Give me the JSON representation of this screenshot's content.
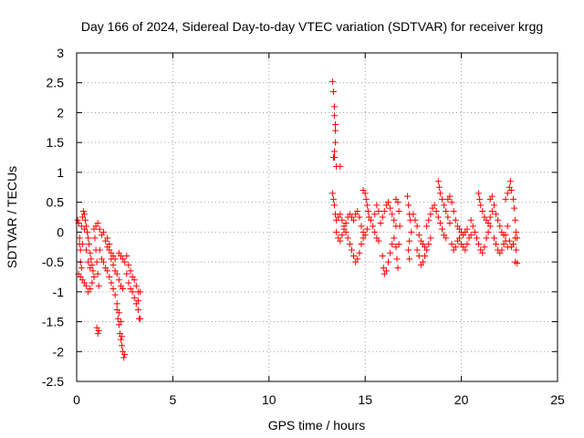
{
  "chart_data": {
    "type": "scatter",
    "title": "Day 166 of 2024, Sidereal Day-to-day VTEC variation (SDTVAR) for receiver krgg",
    "xlabel": "GPS time / hours",
    "ylabel": "SDTVAR / TECUs",
    "xlim": [
      0,
      25
    ],
    "ylim": [
      -2.5,
      3
    ],
    "xticks": [
      0,
      5,
      10,
      15,
      20,
      25
    ],
    "xtick_labels": [
      "0",
      "5",
      "10",
      "15",
      "20",
      "25"
    ],
    "yticks": [
      -2.5,
      -2,
      -1.5,
      -1,
      -0.5,
      0,
      0.5,
      1,
      1.5,
      2,
      2.5,
      3
    ],
    "ytick_labels": [
      "-2.5",
      "-2",
      "-1.5",
      "-1",
      "-0.5",
      "0",
      "0.5",
      "1",
      "1.5",
      "2",
      "2.5",
      "3"
    ],
    "grid": true,
    "marker": "+",
    "marker_color": "#ff0000",
    "series": [
      {
        "name": "SDTVAR",
        "points": [
          [
            0.05,
            0.2
          ],
          [
            0.1,
            0.15
          ],
          [
            0.15,
            -0.1
          ],
          [
            0.2,
            -0.3
          ],
          [
            0.25,
            0.1
          ],
          [
            0.3,
            0.25
          ],
          [
            0.35,
            0.35
          ],
          [
            0.4,
            0.3
          ],
          [
            0.45,
            0.2
          ],
          [
            0.5,
            0.1
          ],
          [
            0.55,
            0.0
          ],
          [
            0.6,
            -0.1
          ],
          [
            0.65,
            -0.2
          ],
          [
            0.7,
            -0.35
          ],
          [
            0.75,
            -0.45
          ],
          [
            0.8,
            -0.55
          ],
          [
            0.85,
            -0.65
          ],
          [
            0.1,
            -0.7
          ],
          [
            0.2,
            -0.75
          ],
          [
            0.3,
            -0.8
          ],
          [
            0.4,
            -0.85
          ],
          [
            0.5,
            -0.9
          ],
          [
            0.6,
            -1.0
          ],
          [
            0.7,
            -0.95
          ],
          [
            0.8,
            -0.85
          ],
          [
            0.9,
            -0.75
          ],
          [
            0.15,
            -0.2
          ],
          [
            0.2,
            -0.5
          ],
          [
            0.25,
            -0.6
          ],
          [
            0.3,
            -0.2
          ],
          [
            0.4,
            0.05
          ],
          [
            0.5,
            -0.3
          ],
          [
            0.6,
            -0.5
          ],
          [
            0.7,
            -0.6
          ],
          [
            0.9,
            0.05
          ],
          [
            0.95,
            -0.1
          ],
          [
            1.0,
            -0.3
          ],
          [
            1.05,
            -0.5
          ],
          [
            1.1,
            -0.7
          ],
          [
            1.15,
            -0.9
          ],
          [
            1.05,
            -1.6
          ],
          [
            1.1,
            -1.7
          ],
          [
            1.15,
            -1.65
          ],
          [
            1.0,
            0.1
          ],
          [
            1.1,
            0.15
          ],
          [
            1.2,
            0.05
          ],
          [
            1.3,
            -0.05
          ],
          [
            1.4,
            0.0
          ],
          [
            1.5,
            -0.15
          ],
          [
            1.6,
            -0.25
          ],
          [
            1.7,
            -0.3
          ],
          [
            1.8,
            -0.35
          ],
          [
            1.9,
            -0.4
          ],
          [
            2.0,
            -0.45
          ],
          [
            1.2,
            -0.3
          ],
          [
            1.3,
            -0.45
          ],
          [
            1.4,
            -0.5
          ],
          [
            1.5,
            -0.6
          ],
          [
            1.6,
            -0.65
          ],
          [
            1.7,
            -0.75
          ],
          [
            1.8,
            -0.85
          ],
          [
            1.9,
            -0.95
          ],
          [
            2.0,
            -1.05
          ],
          [
            2.1,
            -1.2
          ],
          [
            2.2,
            -1.35
          ],
          [
            2.3,
            -1.5
          ],
          [
            2.1,
            -1.3
          ],
          [
            2.15,
            -1.45
          ],
          [
            2.2,
            -1.55
          ],
          [
            2.25,
            -1.7
          ],
          [
            2.3,
            -1.8
          ],
          [
            2.35,
            -1.9
          ],
          [
            2.4,
            -2.0
          ],
          [
            2.45,
            -2.1
          ],
          [
            2.5,
            -2.05
          ],
          [
            2.35,
            -1.75
          ],
          [
            2.2,
            -0.35
          ],
          [
            2.3,
            -0.4
          ],
          [
            2.4,
            -0.45
          ],
          [
            2.5,
            -0.5
          ],
          [
            2.6,
            -0.4
          ],
          [
            2.7,
            -0.55
          ],
          [
            2.8,
            -0.65
          ],
          [
            2.9,
            -0.75
          ],
          [
            3.0,
            -0.8
          ],
          [
            3.1,
            -0.9
          ],
          [
            3.2,
            -1.0
          ],
          [
            3.3,
            -1.0
          ],
          [
            2.6,
            -0.7
          ],
          [
            2.7,
            -0.85
          ],
          [
            2.8,
            -0.95
          ],
          [
            2.9,
            -1.0
          ],
          [
            3.0,
            -1.1
          ],
          [
            3.1,
            -1.2
          ],
          [
            3.2,
            -1.3
          ],
          [
            3.25,
            -1.45
          ],
          [
            3.3,
            -1.45
          ],
          [
            3.2,
            -1.15
          ],
          [
            1.6,
            -0.1
          ],
          [
            1.7,
            -0.2
          ],
          [
            1.8,
            -0.45
          ],
          [
            1.9,
            -0.55
          ],
          [
            2.0,
            -0.65
          ],
          [
            2.1,
            -0.7
          ],
          [
            2.2,
            -0.8
          ],
          [
            2.3,
            -0.9
          ],
          [
            2.4,
            -0.95
          ],
          [
            13.3,
            2.52
          ],
          [
            13.35,
            2.35
          ],
          [
            13.4,
            2.1
          ],
          [
            13.4,
            1.95
          ],
          [
            13.45,
            1.8
          ],
          [
            13.45,
            1.7
          ],
          [
            13.45,
            1.5
          ],
          [
            13.4,
            1.35
          ],
          [
            13.35,
            1.25
          ],
          [
            13.4,
            1.25
          ],
          [
            13.5,
            1.1
          ],
          [
            13.7,
            1.1
          ],
          [
            13.3,
            0.65
          ],
          [
            13.35,
            0.55
          ],
          [
            13.4,
            0.45
          ],
          [
            13.45,
            0.3
          ],
          [
            13.5,
            0.2
          ],
          [
            13.6,
            0.25
          ],
          [
            13.7,
            0.3
          ],
          [
            13.8,
            0.2
          ],
          [
            13.9,
            0.1
          ],
          [
            14.0,
            0.0
          ],
          [
            14.1,
            -0.1
          ],
          [
            13.5,
            0.0
          ],
          [
            13.6,
            -0.1
          ],
          [
            13.7,
            -0.15
          ],
          [
            13.8,
            -0.05
          ],
          [
            13.9,
            0.05
          ],
          [
            14.0,
            0.15
          ],
          [
            14.1,
            0.25
          ],
          [
            14.2,
            0.3
          ],
          [
            14.3,
            0.25
          ],
          [
            14.4,
            0.2
          ],
          [
            14.5,
            0.3
          ],
          [
            14.6,
            0.35
          ],
          [
            14.7,
            0.25
          ],
          [
            14.8,
            0.1
          ],
          [
            14.9,
            0.0
          ],
          [
            14.2,
            -0.2
          ],
          [
            14.3,
            -0.3
          ],
          [
            14.4,
            -0.4
          ],
          [
            14.5,
            -0.5
          ],
          [
            14.6,
            -0.45
          ],
          [
            14.7,
            -0.35
          ],
          [
            14.8,
            -0.2
          ],
          [
            14.9,
            -0.1
          ],
          [
            15.0,
            -0.05
          ],
          [
            15.1,
            0.05
          ],
          [
            14.9,
            0.7
          ],
          [
            15.0,
            0.65
          ],
          [
            15.05,
            0.55
          ],
          [
            15.1,
            0.45
          ],
          [
            15.15,
            0.35
          ],
          [
            15.2,
            0.25
          ],
          [
            15.3,
            0.2
          ],
          [
            15.4,
            0.1
          ],
          [
            15.5,
            0.0
          ],
          [
            15.6,
            -0.1
          ],
          [
            15.7,
            -0.15
          ],
          [
            15.5,
            0.3
          ],
          [
            15.6,
            0.45
          ],
          [
            15.7,
            0.35
          ],
          [
            15.8,
            0.15
          ],
          [
            15.9,
            0.25
          ],
          [
            16.0,
            0.35
          ],
          [
            16.1,
            0.45
          ],
          [
            16.2,
            0.5
          ],
          [
            16.3,
            0.4
          ],
          [
            16.4,
            0.3
          ],
          [
            16.5,
            0.2
          ],
          [
            16.6,
            0.1
          ],
          [
            15.9,
            -0.4
          ],
          [
            15.95,
            -0.6
          ],
          [
            16.0,
            -0.7
          ],
          [
            16.1,
            -0.65
          ],
          [
            16.2,
            -0.5
          ],
          [
            16.3,
            -0.35
          ],
          [
            16.4,
            -0.2
          ],
          [
            16.5,
            -0.1
          ],
          [
            16.6,
            -0.25
          ],
          [
            16.65,
            -0.45
          ],
          [
            16.7,
            -0.6
          ],
          [
            16.6,
            0.55
          ],
          [
            16.7,
            0.5
          ],
          [
            16.75,
            0.35
          ],
          [
            16.8,
            0.1
          ],
          [
            16.75,
            -0.2
          ],
          [
            17.2,
            0.6
          ],
          [
            17.25,
            0.45
          ],
          [
            17.3,
            0.3
          ],
          [
            17.35,
            0.2
          ],
          [
            17.4,
            0.0
          ],
          [
            17.3,
            -0.15
          ],
          [
            17.25,
            -0.3
          ],
          [
            17.3,
            -0.45
          ],
          [
            17.5,
            0.3
          ],
          [
            17.6,
            0.2
          ],
          [
            17.7,
            0.1
          ],
          [
            17.8,
            -0.05
          ],
          [
            17.9,
            -0.15
          ],
          [
            18.0,
            -0.2
          ],
          [
            18.1,
            -0.25
          ],
          [
            18.2,
            -0.3
          ],
          [
            18.3,
            -0.2
          ],
          [
            18.4,
            -0.1
          ],
          [
            17.7,
            -0.3
          ],
          [
            17.8,
            -0.4
          ],
          [
            17.9,
            -0.55
          ],
          [
            18.0,
            -0.5
          ],
          [
            18.1,
            -0.4
          ],
          [
            18.2,
            0.1
          ],
          [
            18.3,
            0.2
          ],
          [
            18.4,
            0.3
          ],
          [
            18.5,
            0.4
          ],
          [
            18.6,
            0.45
          ],
          [
            18.7,
            0.35
          ],
          [
            18.8,
            0.25
          ],
          [
            18.9,
            0.15
          ],
          [
            19.0,
            0.05
          ],
          [
            19.1,
            -0.05
          ],
          [
            19.2,
            -0.1
          ],
          [
            18.8,
            0.85
          ],
          [
            18.85,
            0.75
          ],
          [
            18.9,
            0.65
          ],
          [
            19.0,
            0.55
          ],
          [
            19.1,
            0.45
          ],
          [
            19.2,
            0.35
          ],
          [
            19.3,
            0.25
          ],
          [
            19.4,
            0.15
          ],
          [
            19.3,
            0.55
          ],
          [
            19.4,
            0.6
          ],
          [
            19.5,
            0.5
          ],
          [
            19.6,
            0.35
          ],
          [
            19.7,
            0.2
          ],
          [
            19.8,
            0.1
          ],
          [
            19.9,
            0.05
          ],
          [
            20.0,
            0.0
          ],
          [
            20.1,
            -0.05
          ],
          [
            20.2,
            0.0
          ],
          [
            20.3,
            0.05
          ],
          [
            19.5,
            -0.2
          ],
          [
            19.6,
            -0.3
          ],
          [
            19.7,
            -0.25
          ],
          [
            19.8,
            -0.15
          ],
          [
            19.9,
            -0.1
          ],
          [
            20.0,
            -0.2
          ],
          [
            20.1,
            -0.25
          ],
          [
            20.2,
            -0.3
          ],
          [
            20.3,
            -0.2
          ],
          [
            20.4,
            -0.1
          ],
          [
            20.5,
            -0.05
          ],
          [
            20.5,
            0.2
          ],
          [
            20.6,
            0.1
          ],
          [
            20.7,
            0.0
          ],
          [
            20.8,
            -0.1
          ],
          [
            20.9,
            -0.2
          ],
          [
            21.0,
            -0.3
          ],
          [
            21.1,
            -0.35
          ],
          [
            21.2,
            -0.25
          ],
          [
            21.3,
            -0.1
          ],
          [
            21.4,
            0.0
          ],
          [
            21.5,
            0.1
          ],
          [
            20.9,
            0.65
          ],
          [
            20.95,
            0.55
          ],
          [
            21.0,
            0.45
          ],
          [
            21.1,
            0.35
          ],
          [
            21.2,
            0.25
          ],
          [
            21.3,
            0.2
          ],
          [
            21.4,
            0.15
          ],
          [
            21.5,
            0.25
          ],
          [
            21.6,
            0.35
          ],
          [
            21.5,
            0.55
          ],
          [
            21.6,
            0.6
          ],
          [
            21.7,
            0.45
          ],
          [
            21.8,
            0.3
          ],
          [
            21.9,
            0.2
          ],
          [
            22.0,
            0.1
          ],
          [
            22.1,
            0.0
          ],
          [
            22.2,
            -0.05
          ],
          [
            22.3,
            -0.15
          ],
          [
            22.4,
            -0.25
          ],
          [
            21.7,
            -0.1
          ],
          [
            21.8,
            -0.2
          ],
          [
            21.9,
            -0.3
          ],
          [
            22.0,
            -0.35
          ],
          [
            22.1,
            -0.3
          ],
          [
            22.2,
            -0.2
          ],
          [
            22.3,
            -0.05
          ],
          [
            22.4,
            0.1
          ],
          [
            22.3,
            0.55
          ],
          [
            22.4,
            0.65
          ],
          [
            22.5,
            0.75
          ],
          [
            22.55,
            0.85
          ],
          [
            22.6,
            0.7
          ],
          [
            22.7,
            0.55
          ],
          [
            22.75,
            0.4
          ],
          [
            22.8,
            0.2
          ],
          [
            22.85,
            0.0
          ],
          [
            22.9,
            -0.1
          ],
          [
            22.5,
            -0.15
          ],
          [
            22.6,
            -0.25
          ],
          [
            22.7,
            -0.2
          ],
          [
            22.8,
            -0.1
          ],
          [
            22.85,
            -0.3
          ],
          [
            22.8,
            -0.5
          ],
          [
            22.9,
            -0.52
          ]
        ]
      }
    ]
  }
}
